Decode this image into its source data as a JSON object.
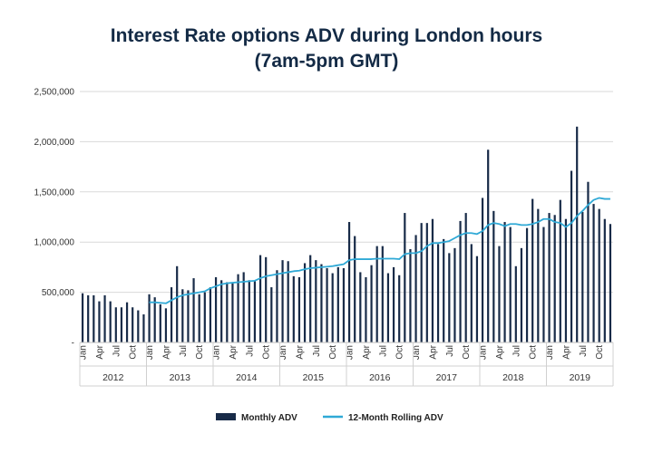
{
  "chart_data": {
    "type": "bar",
    "title_line1": "Interest Rate options ADV during London hours",
    "title_line2": "(7am-5pm GMT)",
    "ylim": [
      0,
      2500000
    ],
    "yticks": [
      {
        "value": 0,
        "label": "-"
      },
      {
        "value": 500000,
        "label": "500,000"
      },
      {
        "value": 1000000,
        "label": "1,000,000"
      },
      {
        "value": 1500000,
        "label": "1,500,000"
      },
      {
        "value": 2000000,
        "label": "2,000,000"
      },
      {
        "value": 2500000,
        "label": "2,500,000"
      }
    ],
    "month_labels": [
      "Jan",
      "Apr",
      "Jul",
      "Oct"
    ],
    "years": [
      "2012",
      "2013",
      "2014",
      "2015",
      "2016",
      "2017",
      "2018",
      "2019"
    ],
    "series": [
      {
        "name": "Monthly ADV",
        "color": "#182b48",
        "values": [
          490000,
          470000,
          470000,
          410000,
          470000,
          410000,
          350000,
          350000,
          400000,
          350000,
          320000,
          280000,
          480000,
          450000,
          380000,
          340000,
          550000,
          760000,
          530000,
          520000,
          640000,
          480000,
          500000,
          550000,
          650000,
          620000,
          600000,
          590000,
          680000,
          700000,
          620000,
          610000,
          870000,
          850000,
          550000,
          720000,
          820000,
          810000,
          660000,
          650000,
          790000,
          870000,
          820000,
          780000,
          740000,
          690000,
          750000,
          740000,
          1200000,
          1060000,
          700000,
          650000,
          770000,
          960000,
          960000,
          690000,
          750000,
          670000,
          1290000,
          930000,
          1070000,
          1190000,
          1190000,
          1230000,
          980000,
          1030000,
          890000,
          940000,
          1210000,
          1290000,
          980000,
          860000,
          1440000,
          1920000,
          1310000,
          960000,
          1200000,
          1150000,
          760000,
          940000,
          1140000,
          1430000,
          1330000,
          1150000,
          1290000,
          1270000,
          1420000,
          1230000,
          1710000,
          2150000,
          1300000,
          1600000,
          1380000,
          1330000,
          1230000,
          1180000
        ]
      },
      {
        "name": "12-Month Rolling ADV",
        "color": "#2fa9d6",
        "values": [
          null,
          null,
          null,
          null,
          null,
          null,
          null,
          null,
          null,
          null,
          null,
          null,
          400000,
          400000,
          395000,
          390000,
          420000,
          450000,
          470000,
          480000,
          490000,
          500000,
          510000,
          540000,
          560000,
          580000,
          590000,
          595000,
          600000,
          605000,
          610000,
          615000,
          640000,
          660000,
          670000,
          680000,
          690000,
          700000,
          710000,
          715000,
          730000,
          740000,
          745000,
          750000,
          755000,
          760000,
          770000,
          780000,
          820000,
          830000,
          830000,
          830000,
          830000,
          835000,
          835000,
          835000,
          835000,
          830000,
          880000,
          890000,
          890000,
          910000,
          960000,
          990000,
          990000,
          1000000,
          1010000,
          1040000,
          1070000,
          1090000,
          1090000,
          1080000,
          1110000,
          1170000,
          1190000,
          1180000,
          1160000,
          1180000,
          1180000,
          1170000,
          1170000,
          1180000,
          1200000,
          1230000,
          1230000,
          1200000,
          1190000,
          1150000,
          1190000,
          1260000,
          1310000,
          1370000,
          1420000,
          1440000,
          1430000,
          1430000
        ]
      }
    ],
    "legend": {
      "position": "bottom"
    },
    "grid": true
  }
}
